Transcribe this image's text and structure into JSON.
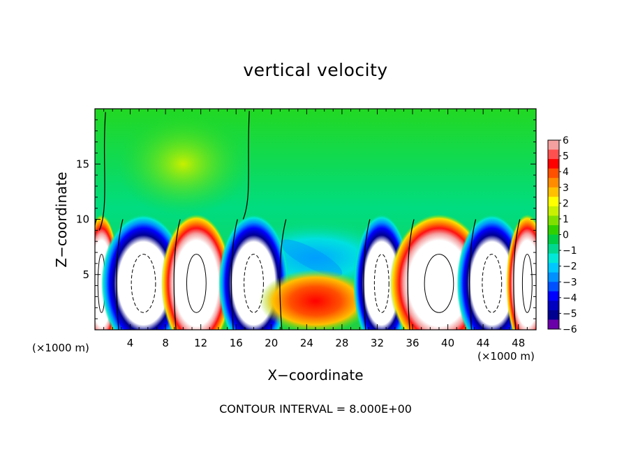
{
  "chart_data": {
    "type": "heatmap",
    "title": "vertical velocity",
    "xlabel": "X−coordinate",
    "ylabel": "Z−coordinate",
    "x_unit_label": "(×1000 m)",
    "y_unit_label": "(×1000 m)",
    "xlim": [
      0,
      50
    ],
    "ylim": [
      0,
      20
    ],
    "x_ticks": [
      4,
      8,
      12,
      16,
      20,
      24,
      28,
      32,
      36,
      40,
      44,
      48
    ],
    "y_ticks": [
      5,
      10,
      15
    ],
    "footnote": "CONTOUR INTERVAL = 8.000E+00",
    "colorbar": {
      "ticks": [
        "6",
        "5",
        "4",
        "3",
        "2",
        "1",
        "0",
        "−1",
        "−2",
        "−3",
        "−4",
        "−5",
        "−6"
      ],
      "min": -6,
      "max": 6,
      "colors": [
        "#f4a0a0",
        "#ff5050",
        "#ff0000",
        "#ff5000",
        "#ff8c00",
        "#ffc000",
        "#ffff00",
        "#c8f000",
        "#7fe000",
        "#30d000",
        "#00cc44",
        "#00d890",
        "#00e8d8",
        "#00c8ff",
        "#0090ff",
        "#0050ff",
        "#0000ff",
        "#0000c0",
        "#000090",
        "#6a00a8"
      ]
    },
    "cells": [
      {
        "x": [
          0,
          1.5
        ],
        "v": 8
      },
      {
        "x": [
          3,
          8
        ],
        "v": -8
      },
      {
        "x": [
          9.5,
          13.5
        ],
        "v": 9
      },
      {
        "x": [
          16,
          20
        ],
        "v": -8
      },
      {
        "x": [
          21.5,
          28.5
        ],
        "v": 3.5
      },
      {
        "x": [
          31,
          34
        ],
        "v": -8
      },
      {
        "x": [
          36,
          42
        ],
        "v": 9
      },
      {
        "x": [
          43,
          47
        ],
        "v": -8
      },
      {
        "x": [
          48,
          50
        ],
        "v": 8
      }
    ]
  }
}
